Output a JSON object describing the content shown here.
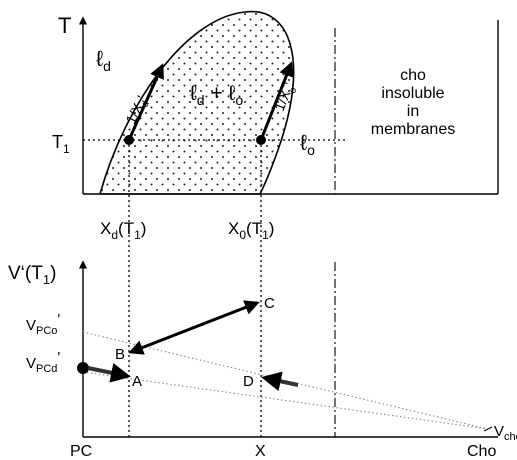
{
  "top_panel": {
    "y_axis_label": "T",
    "y_axis_label_sub": "",
    "t1_label": "T",
    "t1_label_sub": "1",
    "ld_label": "ℓ",
    "ld_label_sub": "d",
    "coexist_label_1": "ℓ",
    "coexist_label_1_sub": "d",
    "coexist_plus": " + ",
    "coexist_label_2": "ℓ",
    "coexist_label_2_sub": "o",
    "lo_label": "ℓ",
    "lo_label_sub": "o",
    "slope_left": "1/X",
    "slope_left_sub": "d",
    "slope_left_prime": "'",
    "slope_right": "1/X",
    "slope_right_sub": "o",
    "slope_right_prime": "'",
    "insoluble_line1": "cho",
    "insoluble_line2": "insoluble",
    "insoluble_line3": "in",
    "insoluble_line4": "membranes"
  },
  "mid_labels": {
    "xd_main": "X",
    "xd_sub": "d",
    "xd_arg_open": "(T",
    "xd_arg_sub": "1",
    "xd_arg_close": ")",
    "x0_main": "X",
    "x0_sub": "0",
    "x0_arg_open": "(T",
    "x0_arg_sub": "1",
    "x0_arg_close": ")"
  },
  "bottom_panel": {
    "y_axis_label": "V‘(T",
    "y_axis_label_sub": "1",
    "y_axis_label_close": ")",
    "v_pco": "V",
    "v_pco_sub": "PCo",
    "v_pco_prime": "'",
    "v_pcd": "V",
    "v_pcd_sub": "PCd",
    "v_pcd_prime": "'",
    "v_cho": "V",
    "v_cho_sub": "cho",
    "point_a": "A",
    "point_b": "B",
    "point_c": "C",
    "point_d": "D",
    "x_left": "PC",
    "x_mid": "X",
    "x_right": "Cho"
  }
}
